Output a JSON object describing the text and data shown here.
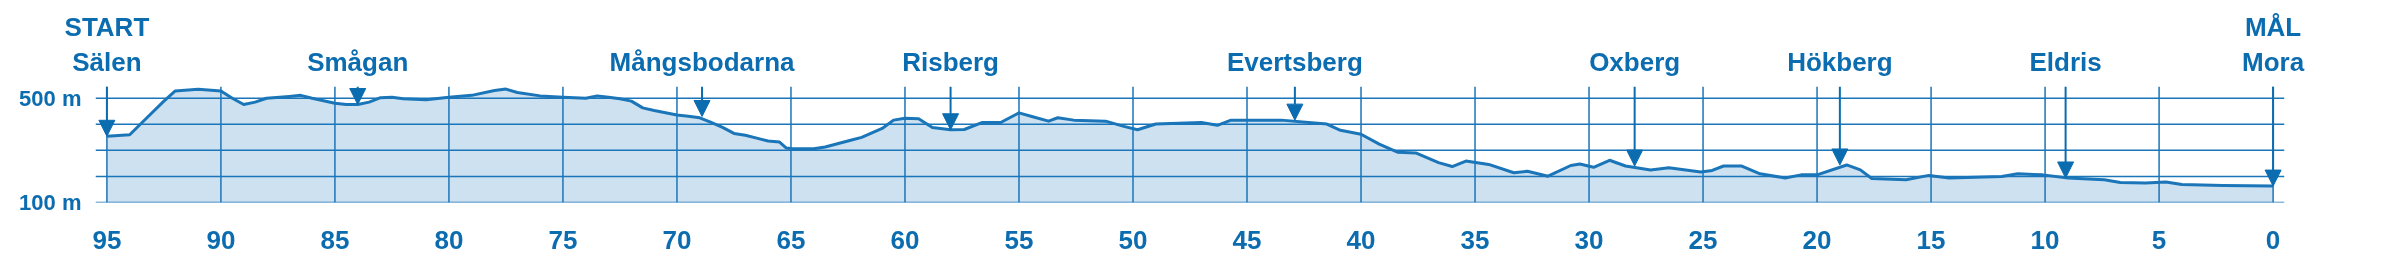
{
  "chart_data": {
    "type": "area",
    "color": "#1b75b9",
    "x": [
      95,
      94,
      93.2,
      92.5,
      92,
      91,
      90,
      89.5,
      89,
      88.5,
      88,
      87,
      86.5,
      86,
      85,
      84.5,
      84,
      83.5,
      83,
      82.5,
      82,
      81,
      80,
      79,
      78,
      77.5,
      77,
      76,
      75,
      74,
      73.5,
      73,
      72.5,
      72,
      71.5,
      71,
      70,
      69.5,
      69,
      68.5,
      68,
      67.5,
      67,
      66.5,
      66,
      65.5,
      65.2,
      65,
      64,
      63.5,
      62.3,
      61.9,
      61,
      60.5,
      60,
      59.4,
      58.8,
      58,
      57.4,
      56.6,
      55.8,
      55,
      54.4,
      53.7,
      53.3,
      52.6,
      51.2,
      50.4,
      49.8,
      49,
      47,
      46.3,
      45.7,
      43.5,
      41.5,
      40.9,
      40,
      39.2,
      38.4,
      37.6,
      36.6,
      36,
      35.4,
      34.4,
      33.3,
      32.7,
      31.8,
      30.8,
      30.4,
      29.8,
      29.1,
      28.4,
      27.3,
      26.5,
      25.1,
      24.6,
      24.1,
      23.3,
      22.5,
      21.4,
      20.7,
      20,
      18.7,
      18.1,
      17.6,
      16.1,
      15.1,
      14.2,
      11.9,
      11.2,
      10.1,
      9,
      7.4,
      6.7,
      5.6,
      4.7,
      4,
      2.2,
      0
    ],
    "values": [
      354,
      360,
      429,
      489,
      528,
      534,
      528,
      500,
      476,
      485,
      500,
      507,
      511,
      500,
      481,
      476,
      476,
      485,
      502,
      504,
      498,
      494,
      504,
      511,
      530,
      535,
      522,
      509,
      504,
      500,
      509,
      504,
      498,
      489,
      463,
      453,
      436,
      431,
      425,
      407,
      388,
      365,
      358,
      347,
      336,
      332,
      309,
      307,
      306,
      313,
      341,
      350,
      384,
      416,
      423,
      421,
      388,
      379,
      380,
      407,
      407,
      444,
      429,
      412,
      425,
      416,
      412,
      392,
      379,
      401,
      407,
      396,
      416,
      416,
      401,
      377,
      362,
      324,
      293,
      290,
      253,
      238,
      259,
      246,
      214,
      220,
      201,
      242,
      248,
      235,
      262,
      240,
      225,
      233,
      217,
      223,
      240,
      240,
      210,
      194,
      206,
      206,
      244,
      225,
      192,
      187,
      204,
      194,
      200,
      210,
      206,
      194,
      187,
      177,
      175,
      179,
      169,
      165,
      163
    ],
    "xlim": [
      95.5,
      -0.5
    ],
    "ylim": [
      100,
      545
    ],
    "xticks": [
      95,
      90,
      85,
      80,
      75,
      70,
      65,
      60,
      55,
      50,
      45,
      40,
      35,
      30,
      25,
      20,
      15,
      10,
      5,
      0
    ],
    "yticks": [
      {
        "value": 100,
        "label": "100 m"
      },
      {
        "value": 200,
        "label": null
      },
      {
        "value": 300,
        "label": null
      },
      {
        "value": 400,
        "label": null
      },
      {
        "value": 500,
        "label": "500 m"
      }
    ],
    "grid": true,
    "annotations": [
      {
        "text": "START Sälen",
        "x": 95,
        "y": 354
      },
      {
        "text": "Smågan",
        "x": 84,
        "y": 476
      },
      {
        "text": "Mångsbodarna",
        "x": 68.9,
        "y": 430
      },
      {
        "text": "Risberg",
        "x": 58,
        "y": 379
      },
      {
        "text": "Evertsberg",
        "x": 42.9,
        "y": 416
      },
      {
        "text": "Oxberg",
        "x": 28,
        "y": 240
      },
      {
        "text": "Hökberg",
        "x": 19,
        "y": 244
      },
      {
        "text": "Eldris",
        "x": 9.1,
        "y": 194
      },
      {
        "text": "MÅL Mora",
        "x": 0,
        "y": 163
      }
    ]
  }
}
